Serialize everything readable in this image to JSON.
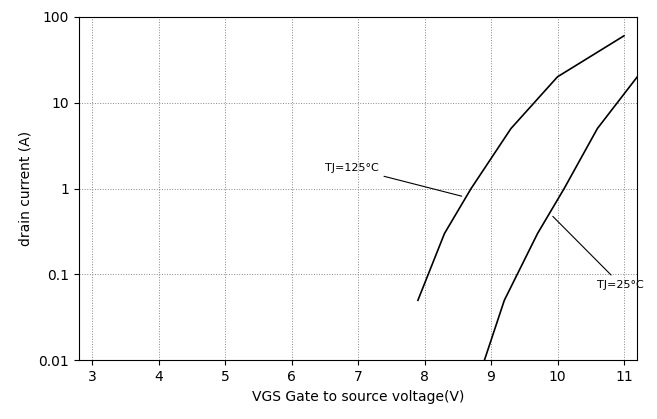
{
  "chart_data": {
    "type": "line",
    "x_label": "VGS Gate to source voltage(V)",
    "y_label": "drain current (A)",
    "log": "y",
    "grid": true,
    "xlim": [
      2.8,
      11.2
    ],
    "xticks": [
      3,
      4,
      5,
      6,
      7,
      8,
      9,
      10,
      11
    ],
    "ylim": [
      0.01,
      100
    ],
    "yticks": [
      0.01,
      0.1,
      1,
      10,
      100
    ],
    "series": [
      {
        "name": "TJ=125°C",
        "color": "#000000",
        "line_style": "solid",
        "x": [
          7.9,
          8.3,
          8.7,
          9.3,
          10.0,
          11.0
        ],
        "values": [
          0.05,
          0.3,
          1,
          5,
          20,
          60
        ]
      },
      {
        "name": "TJ=25°C",
        "color": "#000000",
        "line_style": "solid",
        "x": [
          8.9,
          9.2,
          9.7,
          10.1,
          10.6,
          11.2
        ],
        "values": [
          0.01,
          0.05,
          0.3,
          1,
          5,
          20
        ]
      }
    ],
    "annotations": [
      {
        "text": "TJ=125°C",
        "x": 6.5,
        "y": 1.6,
        "target_x": 8.6,
        "target_y": 0.8
      },
      {
        "text": "TJ=25°C",
        "x": 10.6,
        "y": 0.07,
        "target_x": 9.9,
        "target_y": 0.5
      }
    ]
  }
}
